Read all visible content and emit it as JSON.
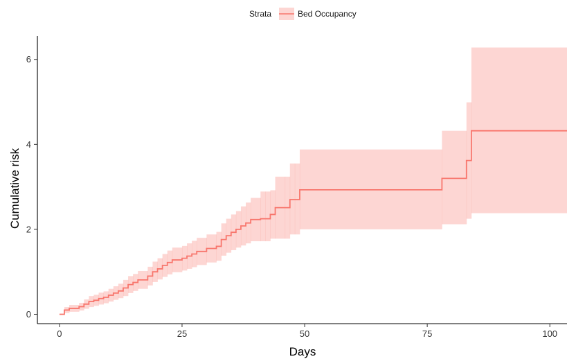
{
  "chart_data": {
    "type": "line",
    "subtype": "step",
    "xlabel": "Days",
    "ylabel": "Cumulative risk",
    "xlim": [
      -4.5,
      103.5
    ],
    "ylim": [
      -0.22,
      6.55
    ],
    "x_ticks": [
      0,
      25,
      50,
      75,
      100
    ],
    "y_ticks": [
      0,
      2,
      4,
      6
    ],
    "grid": false,
    "legend": {
      "position": "top",
      "title": "Strata",
      "entries": [
        "Bed Occupancy"
      ]
    },
    "series": [
      {
        "name": "Bed Occupancy",
        "color": "#F8766D",
        "band_color": "#F8766D",
        "band_opacity": 0.3,
        "x": [
          0,
          1,
          2,
          4,
          5,
          6,
          7,
          8,
          9,
          10,
          11,
          12,
          13,
          14,
          15,
          16,
          18,
          19,
          20,
          21,
          22,
          23,
          25,
          26,
          27,
          28,
          30,
          32,
          33,
          34,
          35,
          36,
          37,
          38,
          39,
          41,
          42,
          43,
          44,
          46,
          47,
          48,
          49,
          78,
          83,
          84,
          104
        ],
        "y": [
          0,
          0.1,
          0.14,
          0.18,
          0.24,
          0.3,
          0.33,
          0.37,
          0.4,
          0.45,
          0.5,
          0.55,
          0.62,
          0.7,
          0.75,
          0.81,
          0.9,
          1.0,
          1.07,
          1.15,
          1.22,
          1.28,
          1.32,
          1.37,
          1.42,
          1.48,
          1.55,
          1.6,
          1.76,
          1.85,
          1.93,
          2.0,
          2.08,
          2.15,
          2.23,
          2.25,
          2.25,
          2.35,
          2.51,
          2.51,
          2.7,
          2.7,
          2.93,
          3.2,
          3.62,
          4.32,
          4.32
        ],
        "lower": [
          0,
          0.03,
          0.06,
          0.09,
          0.13,
          0.17,
          0.2,
          0.23,
          0.26,
          0.3,
          0.34,
          0.38,
          0.43,
          0.5,
          0.55,
          0.6,
          0.68,
          0.76,
          0.82,
          0.88,
          0.94,
          0.99,
          1.03,
          1.07,
          1.11,
          1.16,
          1.22,
          1.26,
          1.38,
          1.45,
          1.51,
          1.57,
          1.62,
          1.67,
          1.72,
          1.72,
          1.72,
          1.78,
          1.78,
          1.78,
          1.88,
          1.88,
          2.0,
          2.12,
          2.25,
          2.38,
          2.38
        ],
        "upper": [
          0,
          0.17,
          0.22,
          0.27,
          0.35,
          0.43,
          0.46,
          0.51,
          0.54,
          0.6,
          0.66,
          0.72,
          0.81,
          0.9,
          0.95,
          1.02,
          1.12,
          1.24,
          1.32,
          1.42,
          1.5,
          1.57,
          1.61,
          1.67,
          1.73,
          1.8,
          1.88,
          1.94,
          2.14,
          2.25,
          2.35,
          2.43,
          2.54,
          2.63,
          2.74,
          2.89,
          2.89,
          2.92,
          3.24,
          3.24,
          3.55,
          3.55,
          3.88,
          4.32,
          4.99,
          6.28,
          6.28
        ]
      }
    ]
  }
}
